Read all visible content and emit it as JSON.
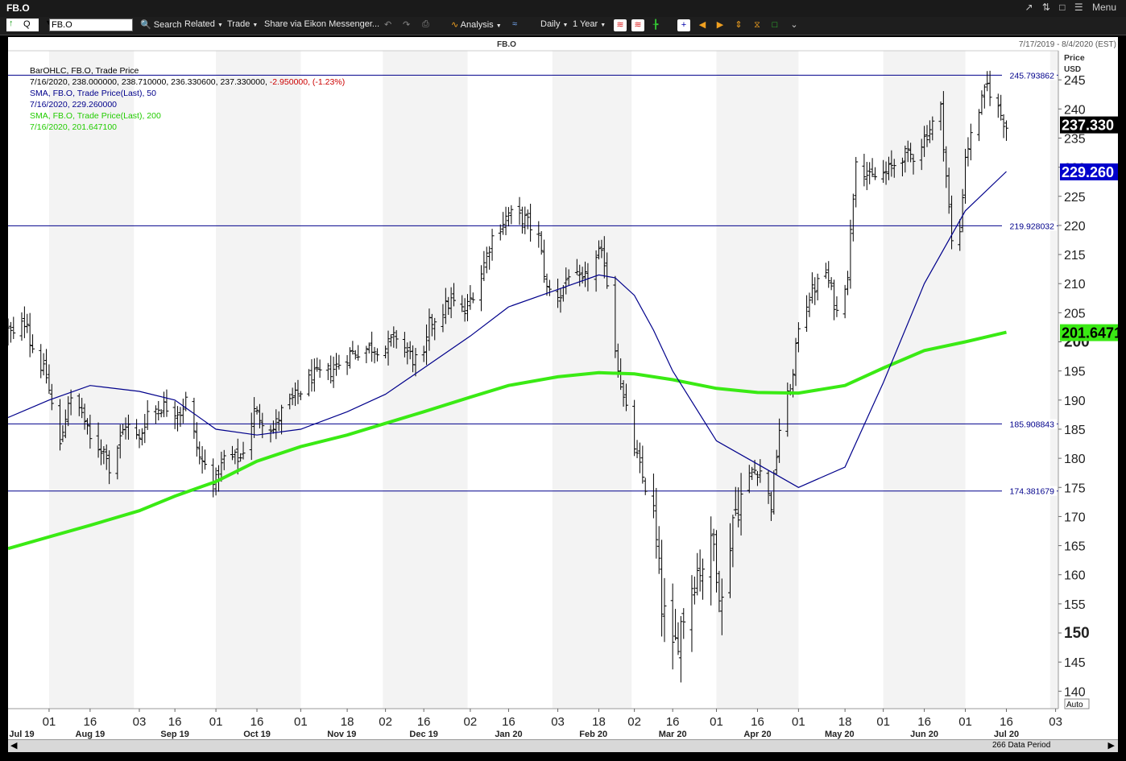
{
  "window": {
    "title": "FB.O",
    "menu_label": "Menu"
  },
  "toolbar": {
    "ric_prefix": "Q",
    "ric_value": "FB.O",
    "search": "Search",
    "related": "Related",
    "trade": "Trade",
    "share": "Share via Eikon Messenger...",
    "analysis": "Analysis",
    "interval": "Daily",
    "range": "1 Year"
  },
  "header": {
    "instrument": "FB.O",
    "date_range": "7/17/2019 - 8/4/2020 (EST)"
  },
  "legend": {
    "line1": "BarOHLC, FB.O, Trade Price",
    "line2a": "7/16/2020, 238.000000, 238.710000, 236.330600, 237.330000,",
    "line2b": "-2.950000, (-1.23%)",
    "line3": "SMA, FB.O, Trade Price(Last),  50",
    "line4": "7/16/2020, 229.260000",
    "line5": "SMA, FB.O, Trade Price(Last),  200",
    "line6": "7/16/2020, 201.647100"
  },
  "colors": {
    "background": "#ffffff",
    "band": "#f3f3f3",
    "bars": "#000000",
    "sma50": "#00008b",
    "sma200": "#3aea14",
    "hlines": "#00008b",
    "legend_red": "#cc0000",
    "legend_green": "#22cc00",
    "price_tag_sma50_bg": "#0000cc"
  },
  "footer": {
    "data_period": "266 Data Period",
    "auto_label": "Auto"
  },
  "chart_data": {
    "type": "bar_ohlc",
    "title": "FB.O",
    "ylabel": "Price\nUSD",
    "ylim": [
      137,
      250
    ],
    "yticks": [
      140,
      145,
      150,
      155,
      160,
      165,
      170,
      175,
      180,
      185,
      190,
      195,
      200,
      205,
      210,
      215,
      220,
      225,
      230,
      235,
      240,
      245
    ],
    "ytick_bold": [
      150,
      200
    ],
    "x_range_dates": [
      "2019-07-17",
      "2020-08-04"
    ],
    "x_tick_days": [
      "01",
      "16",
      "03",
      "16",
      "01",
      "16",
      "01",
      "18",
      "02",
      "16",
      "02",
      "16",
      "03",
      "18",
      "02",
      "16",
      "01",
      "16",
      "01",
      "18",
      "01",
      "16",
      "01",
      "16",
      "03"
    ],
    "x_tick_dates": [
      "2019-08-01",
      "2019-08-16",
      "2019-09-03",
      "2019-09-16",
      "2019-10-01",
      "2019-10-16",
      "2019-11-01",
      "2019-11-18",
      "2019-12-02",
      "2019-12-16",
      "2020-01-02",
      "2020-01-16",
      "2020-02-03",
      "2020-02-18",
      "2020-03-02",
      "2020-03-16",
      "2020-04-01",
      "2020-04-16",
      "2020-05-01",
      "2020-05-18",
      "2020-06-01",
      "2020-06-16",
      "2020-07-01",
      "2020-07-16",
      "2020-08-03"
    ],
    "month_labels": [
      "Jul 19",
      "Aug 19",
      "Sep 19",
      "Oct 19",
      "Nov 19",
      "Dec 19",
      "Jan 20",
      "Feb 20",
      "Mar 20",
      "Apr 20",
      "May 20",
      "Jun 20",
      "Jul 20"
    ],
    "month_label_dates": [
      "2019-07-22",
      "2019-08-16",
      "2019-09-16",
      "2019-10-16",
      "2019-11-16",
      "2019-12-16",
      "2020-01-16",
      "2020-02-16",
      "2020-03-16",
      "2020-04-16",
      "2020-05-16",
      "2020-06-16",
      "2020-07-16"
    ],
    "horizontal_lines": [
      245.793862,
      219.928032,
      185.908843,
      174.381679
    ],
    "horizontal_line_labels": [
      "245.793862",
      "219.928032",
      "185.908843",
      "174.381679"
    ],
    "last_values": {
      "close": 237.33,
      "sma50": 229.26,
      "sma200": 201.6471
    },
    "last_value_labels": [
      "237.330",
      "229.260",
      "201.6471"
    ],
    "ohlc_anchor_closes": [
      [
        "2019-07-17",
        202
      ],
      [
        "2019-07-19",
        201
      ],
      [
        "2019-07-24",
        204
      ],
      [
        "2019-07-25",
        200
      ],
      [
        "2019-07-26",
        199
      ],
      [
        "2019-07-31",
        194
      ],
      [
        "2019-08-05",
        182
      ],
      [
        "2019-08-08",
        190
      ],
      [
        "2019-08-13",
        188
      ],
      [
        "2019-08-16",
        183
      ],
      [
        "2019-08-22",
        181
      ],
      [
        "2019-08-23",
        178
      ],
      [
        "2019-08-29",
        186
      ],
      [
        "2019-09-03",
        183
      ],
      [
        "2019-09-06",
        188
      ],
      [
        "2019-09-12",
        189
      ],
      [
        "2019-09-18",
        188
      ],
      [
        "2019-09-20",
        190
      ],
      [
        "2019-09-25",
        180
      ],
      [
        "2019-10-01",
        176
      ],
      [
        "2019-10-04",
        180
      ],
      [
        "2019-10-10",
        180
      ],
      [
        "2019-10-15",
        188
      ],
      [
        "2019-10-22",
        185
      ],
      [
        "2019-10-25",
        188
      ],
      [
        "2019-10-31",
        191
      ],
      [
        "2019-11-05",
        194
      ],
      [
        "2019-11-12",
        195
      ],
      [
        "2019-11-19",
        198
      ],
      [
        "2019-11-26",
        199
      ],
      [
        "2019-12-02",
        199
      ],
      [
        "2019-12-06",
        201
      ],
      [
        "2019-12-12",
        197
      ],
      [
        "2019-12-16",
        197
      ],
      [
        "2019-12-18",
        203
      ],
      [
        "2019-12-26",
        207
      ],
      [
        "2019-12-31",
        205
      ],
      [
        "2020-01-06",
        212
      ],
      [
        "2020-01-10",
        218
      ],
      [
        "2020-01-16",
        222
      ],
      [
        "2020-01-22",
        221
      ],
      [
        "2020-01-27",
        218
      ],
      [
        "2020-01-30",
        209
      ],
      [
        "2020-02-04",
        208
      ],
      [
        "2020-02-07",
        212
      ],
      [
        "2020-02-12",
        210
      ],
      [
        "2020-02-18",
        215
      ],
      [
        "2020-02-20",
        214
      ],
      [
        "2020-02-24",
        199
      ],
      [
        "2020-02-27",
        190
      ],
      [
        "2020-03-03",
        180
      ],
      [
        "2020-03-06",
        175
      ],
      [
        "2020-03-09",
        170
      ],
      [
        "2020-03-12",
        155
      ],
      [
        "2020-03-16",
        146
      ],
      [
        "2020-03-18",
        150
      ],
      [
        "2020-03-24",
        160
      ],
      [
        "2020-03-31",
        165
      ],
      [
        "2020-04-03",
        155
      ],
      [
        "2020-04-07",
        170
      ],
      [
        "2020-04-14",
        178
      ],
      [
        "2020-04-17",
        178
      ],
      [
        "2020-04-21",
        172
      ],
      [
        "2020-04-24",
        185
      ],
      [
        "2020-04-29",
        194
      ],
      [
        "2020-05-01",
        203
      ],
      [
        "2020-05-05",
        208
      ],
      [
        "2020-05-11",
        212
      ],
      [
        "2020-05-15",
        205
      ],
      [
        "2020-05-19",
        212
      ],
      [
        "2020-05-22",
        232
      ],
      [
        "2020-05-27",
        228
      ],
      [
        "2020-06-02",
        229
      ],
      [
        "2020-06-08",
        232
      ],
      [
        "2020-06-12",
        232
      ],
      [
        "2020-06-16",
        235
      ],
      [
        "2020-06-22",
        240
      ],
      [
        "2020-06-26",
        217
      ],
      [
        "2020-06-29",
        219
      ],
      [
        "2020-07-01",
        232
      ],
      [
        "2020-07-06",
        240
      ],
      [
        "2020-07-09",
        244
      ],
      [
        "2020-07-13",
        240
      ],
      [
        "2020-07-16",
        237
      ]
    ],
    "sma50_points": [
      [
        "2019-07-17",
        187
      ],
      [
        "2019-08-01",
        190
      ],
      [
        "2019-08-16",
        192.5
      ],
      [
        "2019-09-03",
        191.5
      ],
      [
        "2019-09-16",
        190
      ],
      [
        "2019-10-01",
        185
      ],
      [
        "2019-10-16",
        184
      ],
      [
        "2019-11-01",
        185
      ],
      [
        "2019-11-18",
        188
      ],
      [
        "2019-12-02",
        191
      ],
      [
        "2019-12-16",
        195.5
      ],
      [
        "2020-01-02",
        201
      ],
      [
        "2020-01-16",
        206
      ],
      [
        "2020-02-03",
        209
      ],
      [
        "2020-02-18",
        211.5
      ],
      [
        "2020-02-24",
        211
      ],
      [
        "2020-03-02",
        208
      ],
      [
        "2020-03-09",
        202
      ],
      [
        "2020-03-16",
        195
      ],
      [
        "2020-04-01",
        183
      ],
      [
        "2020-04-16",
        179
      ],
      [
        "2020-05-01",
        175
      ],
      [
        "2020-05-18",
        178.5
      ],
      [
        "2020-06-01",
        193
      ],
      [
        "2020-06-16",
        210
      ],
      [
        "2020-07-01",
        222.5
      ],
      [
        "2020-07-16",
        229.26
      ]
    ],
    "sma200_points": [
      [
        "2019-07-17",
        164.5
      ],
      [
        "2019-08-01",
        166.5
      ],
      [
        "2019-08-16",
        168.5
      ],
      [
        "2019-09-03",
        171
      ],
      [
        "2019-09-16",
        173.5
      ],
      [
        "2019-10-01",
        176
      ],
      [
        "2019-10-16",
        179.5
      ],
      [
        "2019-11-01",
        182
      ],
      [
        "2019-11-18",
        184
      ],
      [
        "2019-12-02",
        186
      ],
      [
        "2019-12-16",
        188
      ],
      [
        "2020-01-02",
        190.5
      ],
      [
        "2020-01-16",
        192.5
      ],
      [
        "2020-02-03",
        194
      ],
      [
        "2020-02-18",
        194.7
      ],
      [
        "2020-03-02",
        194.5
      ],
      [
        "2020-03-16",
        193.5
      ],
      [
        "2020-04-01",
        192
      ],
      [
        "2020-04-16",
        191.3
      ],
      [
        "2020-05-01",
        191.2
      ],
      [
        "2020-05-18",
        192.5
      ],
      [
        "2020-06-01",
        195.5
      ],
      [
        "2020-06-16",
        198.5
      ],
      [
        "2020-07-01",
        200
      ],
      [
        "2020-07-16",
        201.6471
      ]
    ]
  }
}
